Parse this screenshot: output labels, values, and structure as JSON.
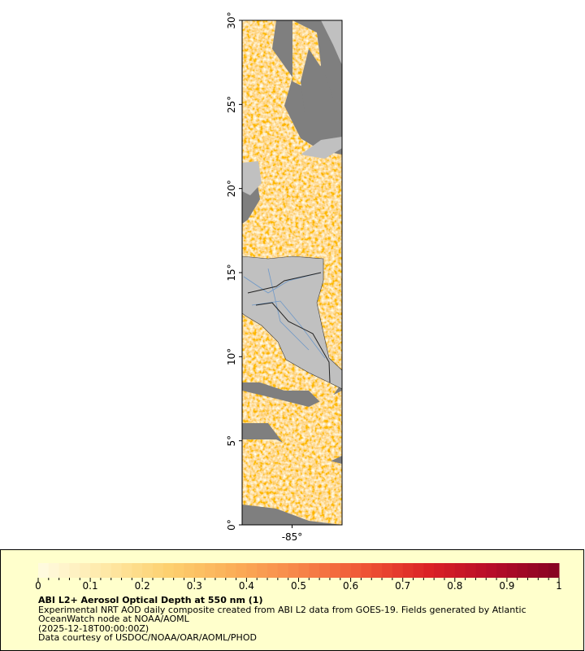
{
  "map": {
    "latlim": [
      0,
      30
    ],
    "lonlim": [
      -88,
      -82
    ],
    "lat_ticks": [
      {
        "value": 0,
        "label": "0°"
      },
      {
        "value": 5,
        "label": "5°"
      },
      {
        "value": 10,
        "label": "10°"
      },
      {
        "value": 15,
        "label": "15°"
      },
      {
        "value": 20,
        "label": "20°"
      },
      {
        "value": 25,
        "label": "25°"
      },
      {
        "value": 30,
        "label": "30°"
      }
    ],
    "lon_ticks": [
      {
        "value": -85,
        "label": "-85°"
      }
    ],
    "colorbar": {
      "lim": [
        0,
        1
      ],
      "ticks": [
        0,
        0.1,
        0.2,
        0.3,
        0.4,
        0.5,
        0.6,
        0.7,
        0.8,
        0.9,
        1
      ],
      "colors": [
        "#fffbe3",
        "#fee9a8",
        "#fdd06f",
        "#fbae57",
        "#f7864a",
        "#ef5535",
        "#db2225",
        "#b50c29",
        "#850323"
      ]
    },
    "title": "ABI L2+ Aerosol Optical Depth at 550 nm (1)",
    "caption": [
      "Experimental NRT AOD daily composite created from ABI L2 data from GOES-19. Fields generated by Atlantic",
      "OceanWatch node at NOAA/AOML",
      "(2025-12-18T00:00:00Z)",
      "Data courtesy of USDOC/NOAA/OAR/AOML/PHOD"
    ]
  }
}
